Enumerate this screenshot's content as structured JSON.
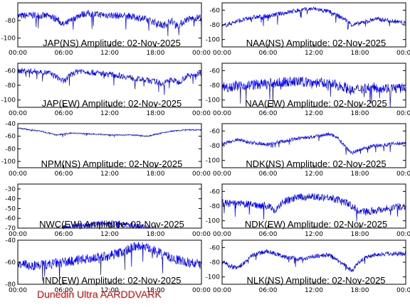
{
  "footer": "Dunedin Ultra AARDDVARK",
  "colors": {
    "trace": "#0000ff",
    "axis": "#000000",
    "footer": "#e00000"
  },
  "chart_data": [
    {
      "type": "line",
      "title": "JAP(NS) Amplitude: 02-Nov-2025",
      "ylim": [
        -110,
        -60
      ],
      "yticks": [
        -100,
        -80
      ],
      "xticks": [
        "00:00",
        "06:00",
        "12:00",
        "18:00",
        "00:00"
      ],
      "series": [
        {
          "x": [
            0,
            2,
            4,
            5,
            6,
            7,
            8,
            9,
            10,
            12,
            14,
            16,
            18,
            19,
            20,
            21,
            22,
            24
          ],
          "y": [
            -75,
            -74,
            -75,
            -78,
            -85,
            -80,
            -74,
            -72,
            -73,
            -74,
            -75,
            -77,
            -82,
            -86,
            -80,
            -86,
            -79,
            -76
          ],
          "spread": 8
        }
      ]
    },
    {
      "type": "line",
      "title": "NAA(NS) Amplitude: 02-Nov-2025",
      "ylim": [
        -110,
        -50
      ],
      "yticks": [
        -100,
        -80,
        -60
      ],
      "xticks": [
        "00:00",
        "06:00",
        "12:00",
        "18:00",
        "00:00"
      ],
      "series": [
        {
          "x": [
            0,
            2,
            4,
            6,
            8,
            10,
            12,
            14,
            16,
            17,
            18,
            20,
            22,
            24
          ],
          "y": [
            -82,
            -75,
            -70,
            -68,
            -64,
            -60,
            -58,
            -62,
            -72,
            -80,
            -78,
            -72,
            -74,
            -78
          ],
          "spread": 6
        }
      ]
    },
    {
      "type": "line",
      "title": "JAP(EW) Amplitude: 02-Nov-2025",
      "ylim": [
        -110,
        -50
      ],
      "yticks": [
        -100,
        -80,
        -60
      ],
      "xticks": [
        "00:00",
        "06:00",
        "12:00",
        "18:00",
        "00:00"
      ],
      "series": [
        {
          "x": [
            0,
            2,
            4,
            5,
            6,
            7,
            8,
            10,
            12,
            14,
            16,
            18,
            19,
            20,
            21,
            22,
            24
          ],
          "y": [
            -60,
            -61,
            -63,
            -68,
            -75,
            -65,
            -60,
            -63,
            -65,
            -68,
            -72,
            -75,
            -78,
            -72,
            -76,
            -68,
            -63
          ],
          "spread": 8
        }
      ]
    },
    {
      "type": "line",
      "title": "NAA(EW) Amplitude: 02-Nov-2025",
      "ylim": [
        -110,
        -50
      ],
      "yticks": [
        -100,
        -80,
        -60
      ],
      "xticks": [
        "00:00",
        "06:00",
        "12:00",
        "18:00",
        "00:00"
      ],
      "series": [
        {
          "x": [
            0,
            3,
            6,
            9,
            12,
            14,
            16,
            17,
            18,
            20,
            22,
            24
          ],
          "y": [
            -82,
            -80,
            -78,
            -75,
            -76,
            -78,
            -82,
            -88,
            -84,
            -83,
            -84,
            -84
          ],
          "spread": 14
        }
      ]
    },
    {
      "type": "line",
      "title": "NPM(NS) Amplitude: 02-Nov-2025",
      "ylim": [
        -110,
        -40
      ],
      "yticks": [
        -100,
        -80,
        -60,
        -40
      ],
      "xticks": [
        "00:00",
        "06:00",
        "12:00",
        "18:00",
        "00:00"
      ],
      "series": [
        {
          "x": [
            0,
            3,
            5,
            7,
            9,
            12,
            15,
            17,
            18,
            20,
            22,
            24
          ],
          "y": [
            -47,
            -52,
            -58,
            -55,
            -56,
            -58,
            -58,
            -60,
            -57,
            -52,
            -50,
            -50
          ],
          "spread": 2
        }
      ]
    },
    {
      "type": "line",
      "title": "NDK(NS) Amplitude: 02-Nov-2025",
      "ylim": [
        -110,
        -50
      ],
      "yticks": [
        -100,
        -80,
        -60
      ],
      "xticks": [
        "00:00",
        "06:00",
        "12:00",
        "18:00",
        "00:00"
      ],
      "series": [
        {
          "x": [
            0,
            2,
            4,
            6,
            8,
            10,
            12,
            14,
            15,
            16,
            17,
            18,
            20,
            22,
            24
          ],
          "y": [
            -78,
            -72,
            -76,
            -78,
            -74,
            -70,
            -68,
            -64,
            -68,
            -80,
            -90,
            -85,
            -80,
            -78,
            -76
          ],
          "spread": 5
        }
      ]
    },
    {
      "type": "line",
      "title": "NWC(EW) Amplitude: 02-Nov-2025",
      "ylim": [
        -70,
        -25
      ],
      "yticks": [
        -70,
        -60,
        -50,
        -40,
        -30
      ],
      "xticks": [
        "00:00",
        "06:00",
        "12:00",
        "18:00",
        "00:00"
      ],
      "series": [
        {
          "x": [
            0,
            4,
            6,
            8,
            10,
            12,
            14,
            16,
            18,
            20,
            24
          ],
          "y": [
            -75,
            -74,
            -70,
            -68,
            -66,
            -65,
            -66,
            -68,
            -72,
            -74,
            -75
          ],
          "spread": 6
        }
      ]
    },
    {
      "type": "line",
      "title": "NDK(EW) Amplitude: 02-Nov-2025",
      "ylim": [
        -110,
        -50
      ],
      "yticks": [
        -100,
        -80,
        -60
      ],
      "xticks": [
        "00:00",
        "06:00",
        "12:00",
        "18:00",
        "00:00"
      ],
      "series": [
        {
          "x": [
            0,
            2,
            4,
            6,
            7,
            8,
            10,
            12,
            14,
            16,
            17,
            18,
            20,
            22,
            24
          ],
          "y": [
            -76,
            -77,
            -78,
            -80,
            -86,
            -74,
            -68,
            -67,
            -68,
            -74,
            -80,
            -88,
            -86,
            -82,
            -80
          ],
          "spread": 10
        }
      ]
    },
    {
      "type": "line",
      "title": "IND(EW) Amplitude: 02-Nov-2025",
      "ylim": [
        -80,
        -40
      ],
      "yticks": [
        -80,
        -60,
        -40
      ],
      "xticks": [
        "00:00",
        "06:00",
        "12:00",
        "18:00",
        "00:00"
      ],
      "series": [
        {
          "x": [
            0,
            2,
            4,
            6,
            8,
            10,
            12,
            14,
            15,
            16,
            18,
            20,
            22,
            24
          ],
          "y": [
            -62,
            -63,
            -62,
            -60,
            -58,
            -56,
            -54,
            -50,
            -46,
            -45,
            -50,
            -56,
            -60,
            -62
          ],
          "spread": 9
        }
      ]
    },
    {
      "type": "line",
      "title": "NLK(NS) Amplitude: 02-Nov-2025",
      "ylim": [
        -110,
        -50
      ],
      "yticks": [
        -100,
        -80,
        -60
      ],
      "xticks": [
        "00:00",
        "06:00",
        "12:00",
        "18:00",
        "00:00"
      ],
      "series": [
        {
          "x": [
            0,
            1,
            2,
            3,
            4,
            6,
            8,
            10,
            12,
            14,
            16,
            17,
            18,
            19,
            20,
            22,
            24
          ],
          "y": [
            -78,
            -85,
            -88,
            -80,
            -70,
            -65,
            -72,
            -76,
            -72,
            -70,
            -84,
            -92,
            -78,
            -72,
            -70,
            -68,
            -68
          ],
          "spread": 6
        }
      ]
    }
  ]
}
